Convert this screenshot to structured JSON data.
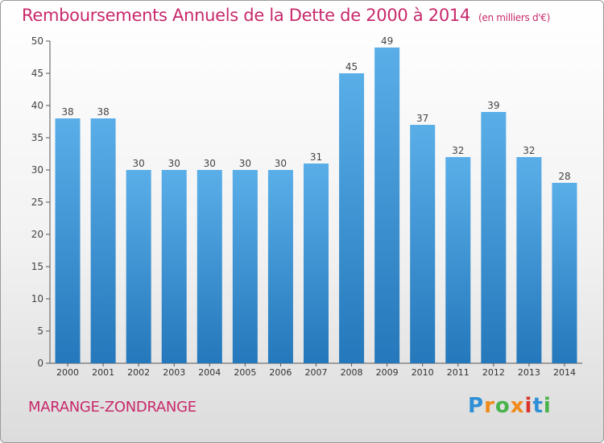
{
  "header": {
    "title": "Remboursements Annuels de la Dette de 2000 à 2014",
    "unit": "(en milliers d'€)"
  },
  "footer": {
    "commune": "MARANGE-ZONDRANGE",
    "logo": "Proxiti"
  },
  "colors": {
    "title": "#c8296b",
    "bar_top": "#5aaee8",
    "bar_bottom": "#2478bb",
    "logo_letters": [
      "#2f8fd6",
      "#f08a1c",
      "#49b34b",
      "#f08a1c",
      "#d9352d",
      "#2f8fd6",
      "#49b34b"
    ]
  },
  "chart_data": {
    "type": "bar",
    "title": "Remboursements Annuels de la Dette de 2000 à 2014",
    "subtitle": "(en milliers d'€)",
    "xlabel": "",
    "ylabel": "",
    "categories": [
      "2000",
      "2001",
      "2002",
      "2003",
      "2004",
      "2005",
      "2006",
      "2007",
      "2008",
      "2009",
      "2010",
      "2011",
      "2012",
      "2013",
      "2014"
    ],
    "values": [
      38,
      38,
      30,
      30,
      30,
      30,
      30,
      31,
      45,
      49,
      37,
      32,
      39,
      32,
      28
    ],
    "ylim": [
      0,
      50
    ],
    "yticks": [
      0,
      5,
      10,
      15,
      20,
      25,
      30,
      35,
      40,
      45,
      50
    ],
    "grid": false,
    "data_labels": true
  }
}
